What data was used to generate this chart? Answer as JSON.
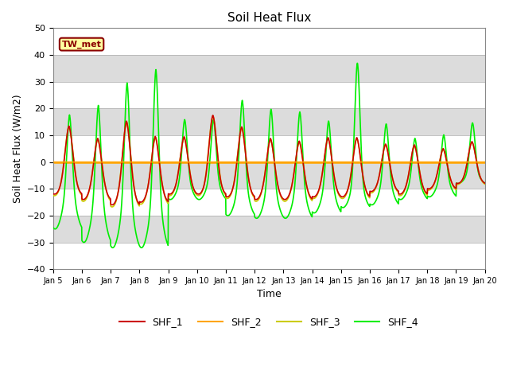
{
  "title": "Soil Heat Flux",
  "xlabel": "Time",
  "ylabel": "Soil Heat Flux (W/m2)",
  "ylim": [
    -40,
    50
  ],
  "yticks": [
    -40,
    -30,
    -20,
    -10,
    0,
    10,
    20,
    30,
    40,
    50
  ],
  "xlim_days": [
    0,
    15
  ],
  "xtick_labels": [
    "Jan 5",
    "Jan 6",
    "Jan 7",
    "Jan 8",
    "Jan 9",
    "Jan 10",
    "Jan 11",
    "Jan 12",
    "Jan 13",
    "Jan 14",
    "Jan 15",
    "Jan 16",
    "Jan 17",
    "Jan 18",
    "Jan 19",
    "Jan 20"
  ],
  "annotation_text": "TW_met",
  "annotation_bg": "#FFFFA0",
  "annotation_edge": "#8B0000",
  "annotation_text_color": "#8B0000",
  "plot_bg": "#DCDCDC",
  "white_band_alpha": 1.0,
  "series_SHF_1_color": "#CC0000",
  "series_SHF_2_color": "#FFA500",
  "series_SHF_3_color": "#CCCC00",
  "series_SHF_4_color": "#00EE00",
  "series_lw": 1.2,
  "zero_line_color": "#FFA500",
  "zero_line_lw": 1.8,
  "fig_bg": "#FFFFFF",
  "day_peaks_shf1": [
    17,
    13,
    20,
    14,
    13,
    21,
    17,
    13,
    12,
    13,
    13,
    10,
    10,
    8,
    10
  ],
  "day_peaks_shf4": [
    25,
    30,
    39,
    44,
    20,
    20,
    29,
    26,
    25,
    21,
    42,
    19,
    13,
    14,
    17
  ],
  "night_troughs_shf1": [
    -12,
    -14,
    -16,
    -15,
    -12,
    -12,
    -13,
    -14,
    -14,
    -13,
    -13,
    -11,
    -12,
    -10,
    -8
  ],
  "night_troughs_shf4": [
    -25,
    -30,
    -32,
    -32,
    -14,
    -14,
    -20,
    -21,
    -21,
    -19,
    -17,
    -16,
    -14,
    -13,
    -8
  ]
}
